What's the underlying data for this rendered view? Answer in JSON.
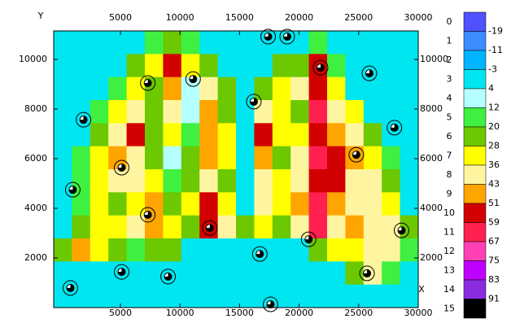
{
  "chart_data": {
    "type": "contour",
    "x_label": "X",
    "y_label": "Y",
    "xlim": [
      -600,
      30000
    ],
    "ylim": [
      0,
      11150
    ],
    "xticks": [
      5000,
      10000,
      15000,
      20000,
      25000,
      30000
    ],
    "yticks": [
      2000,
      4000,
      6000,
      8000,
      10000
    ],
    "grid_values": [
      [
        0,
        0,
        0,
        0,
        0,
        16,
        24,
        16,
        0,
        0,
        0,
        0,
        0,
        0,
        16,
        0,
        0,
        0,
        0,
        0
      ],
      [
        0,
        0,
        0,
        0,
        24,
        32,
        55,
        32,
        24,
        0,
        0,
        0,
        24,
        24,
        55,
        16,
        0,
        0,
        0,
        0
      ],
      [
        0,
        0,
        0,
        16,
        32,
        24,
        47,
        8,
        40,
        24,
        0,
        24,
        32,
        40,
        55,
        32,
        0,
        0,
        0,
        0
      ],
      [
        0,
        0,
        16,
        32,
        40,
        24,
        40,
        8,
        47,
        24,
        0,
        40,
        32,
        24,
        63,
        40,
        32,
        0,
        0,
        0
      ],
      [
        0,
        0,
        24,
        40,
        55,
        24,
        32,
        16,
        47,
        32,
        0,
        55,
        32,
        32,
        55,
        47,
        40,
        24,
        0,
        0
      ],
      [
        0,
        16,
        32,
        47,
        40,
        24,
        8,
        24,
        47,
        32,
        0,
        47,
        24,
        40,
        63,
        55,
        47,
        32,
        16,
        0
      ],
      [
        0,
        16,
        32,
        40,
        40,
        32,
        16,
        24,
        40,
        24,
        0,
        40,
        32,
        40,
        55,
        55,
        40,
        40,
        24,
        0
      ],
      [
        0,
        16,
        32,
        24,
        32,
        47,
        24,
        32,
        55,
        32,
        0,
        40,
        32,
        47,
        63,
        47,
        40,
        40,
        32,
        0
      ],
      [
        0,
        24,
        32,
        32,
        40,
        47,
        32,
        24,
        55,
        40,
        24,
        32,
        24,
        40,
        63,
        40,
        47,
        40,
        40,
        24
      ],
      [
        24,
        47,
        32,
        24,
        16,
        24,
        24,
        0,
        0,
        0,
        0,
        0,
        0,
        0,
        24,
        32,
        32,
        40,
        40,
        16
      ],
      [
        0,
        0,
        0,
        0,
        0,
        0,
        0,
        0,
        0,
        0,
        0,
        0,
        0,
        0,
        0,
        0,
        24,
        40,
        16,
        0
      ],
      [
        0,
        0,
        0,
        0,
        0,
        0,
        0,
        0,
        0,
        0,
        0,
        0,
        0,
        0,
        0,
        0,
        0,
        0,
        0,
        0
      ]
    ],
    "stations": {
      "x": [
        17400,
        19000,
        21800,
        25900,
        11100,
        7300,
        16200,
        1900,
        28000,
        24800,
        5100,
        1000,
        7300,
        12500,
        28600,
        20800,
        16700,
        5100,
        25700,
        9000,
        800,
        17600
      ],
      "y": [
        10920,
        10920,
        9670,
        9440,
        9210,
        9050,
        8300,
        7570,
        7250,
        6160,
        5640,
        4750,
        3740,
        3210,
        3110,
        2750,
        2160,
        1440,
        1380,
        1250,
        790,
        130
      ]
    },
    "legend_classes": [
      0,
      1,
      2,
      3,
      4,
      5,
      6,
      7,
      8,
      9,
      10,
      11,
      12,
      13,
      14,
      15
    ],
    "levels": [
      -19,
      -11,
      -3,
      4,
      12,
      20,
      28,
      36,
      43,
      51,
      59,
      67,
      75,
      83,
      91
    ],
    "colors": [
      "#5050ff",
      "#3c8cff",
      "#00b4ff",
      "#00e6f0",
      "#b4ffff",
      "#40f040",
      "#6cc800",
      "#ffff00",
      "#fff5a0",
      "#ffa500",
      "#d20000",
      "#ff2050",
      "#ff40b4",
      "#c000ff",
      "#8a2be2",
      "#000000"
    ]
  }
}
